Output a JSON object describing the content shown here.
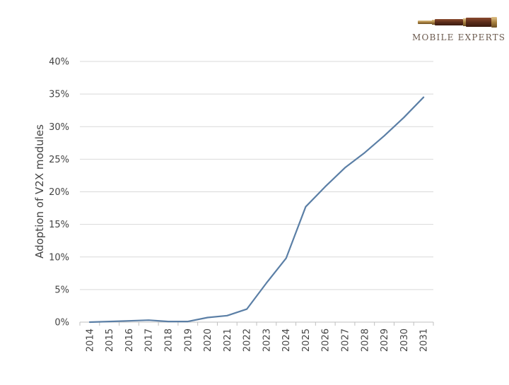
{
  "logo": {
    "text": "MOBILE EXPERTS",
    "icon": "telescope-icon",
    "colors": {
      "brass": "#b08d57",
      "leather": "#6b3a26",
      "text": "#6b5a4e"
    }
  },
  "colors": {
    "line": "#5b7fa6",
    "grid": "#d9d9d9",
    "axis": "#bfbfbf",
    "text": "#444444"
  },
  "chart_data": {
    "type": "line",
    "title": "",
    "xlabel": "",
    "ylabel": "Adoption of V2X modules",
    "categories": [
      "2014",
      "2015",
      "2016",
      "2017",
      "2018",
      "2019",
      "2020",
      "2021",
      "2022",
      "2023",
      "2024",
      "2025",
      "2026",
      "2027",
      "2028",
      "2029",
      "2030",
      "2031"
    ],
    "series": [
      {
        "values": [
          0,
          0.1,
          0.2,
          0.3,
          0.1,
          0.1,
          0.7,
          1.0,
          2.0,
          6.0,
          9.8,
          17.7,
          20.8,
          23.7,
          26.0,
          28.6,
          31.4,
          34.5
        ]
      }
    ],
    "ylim": [
      0,
      40
    ],
    "yticks": [
      0,
      5,
      10,
      15,
      20,
      25,
      30,
      35,
      40
    ],
    "ytick_labels": [
      "0%",
      "5%",
      "10%",
      "15%",
      "20%",
      "25%",
      "30%",
      "35%",
      "40%"
    ],
    "grid": true,
    "legend": "none"
  }
}
